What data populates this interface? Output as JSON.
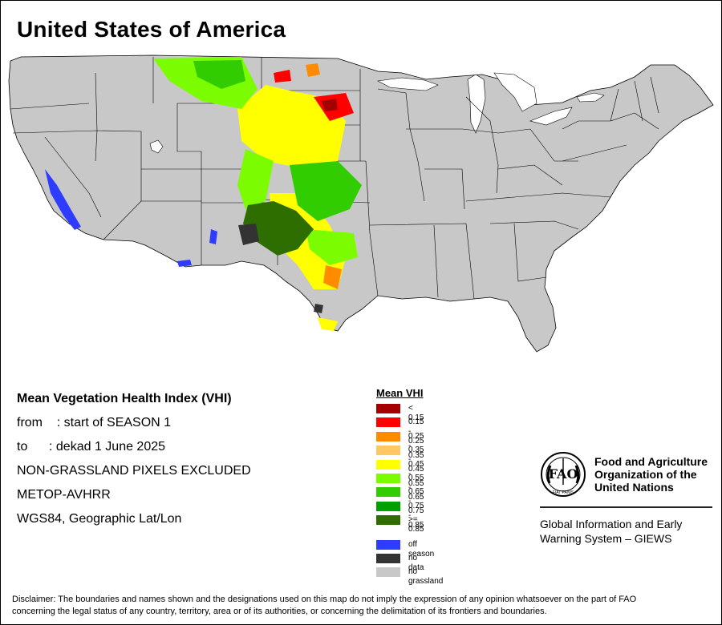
{
  "map": {
    "title": "United States of America"
  },
  "info": {
    "heading": "Mean Vegetation Health Index (VHI)",
    "from_line": "from    : start of SEASON 1",
    "to_line": "to      : dekad 1 June 2025",
    "exclusion_line": "NON-GRASSLAND PIXELS EXCLUDED",
    "sensor_line": "METOP-AVHRR",
    "projection_line": "WGS84, Geographic Lat/Lon"
  },
  "legend": {
    "title": "Mean VHI",
    "classes": [
      {
        "label": "< 0.15",
        "color": "#a50000"
      },
      {
        "label": "0.15 - 0.25",
        "color": "#ff0000"
      },
      {
        "label": "0.25 - 0.35",
        "color": "#ff8c00"
      },
      {
        "label": "0.35 - 0.45",
        "color": "#ffc864"
      },
      {
        "label": "0.45 - 0.55",
        "color": "#ffff00"
      },
      {
        "label": "0.55 - 0.65",
        "color": "#7cfc00"
      },
      {
        "label": "0.65 - 0.75",
        "color": "#32cd00"
      },
      {
        "label": "0.75 - 0.85",
        "color": "#00a000"
      },
      {
        "label": ">= 0.85",
        "color": "#2e6e00"
      }
    ],
    "other": [
      {
        "label": "off season",
        "color": "#2e3cff"
      },
      {
        "label": "no data",
        "color": "#333333"
      },
      {
        "label": "no grassland",
        "color": "#c8c8c8"
      }
    ]
  },
  "fao": {
    "emblem_text": "FAO",
    "motto": "FIAT PANIS",
    "name_line1": "Food and Agriculture",
    "name_line2": "Organization of the",
    "name_line3": "United Nations",
    "giews_line1": "Global Information and Early",
    "giews_line2": "Warning System – GIEWS"
  },
  "disclaimer": {
    "line1": "Disclaimer: The boundaries and names shown and the designations used on this map do not imply the expression of any opinion whatsoever on the part of FAO",
    "line2": "concerning the legal status of any country, territory, area or of its authorities, or concerning the delimitation of its frontiers and boundaries."
  }
}
